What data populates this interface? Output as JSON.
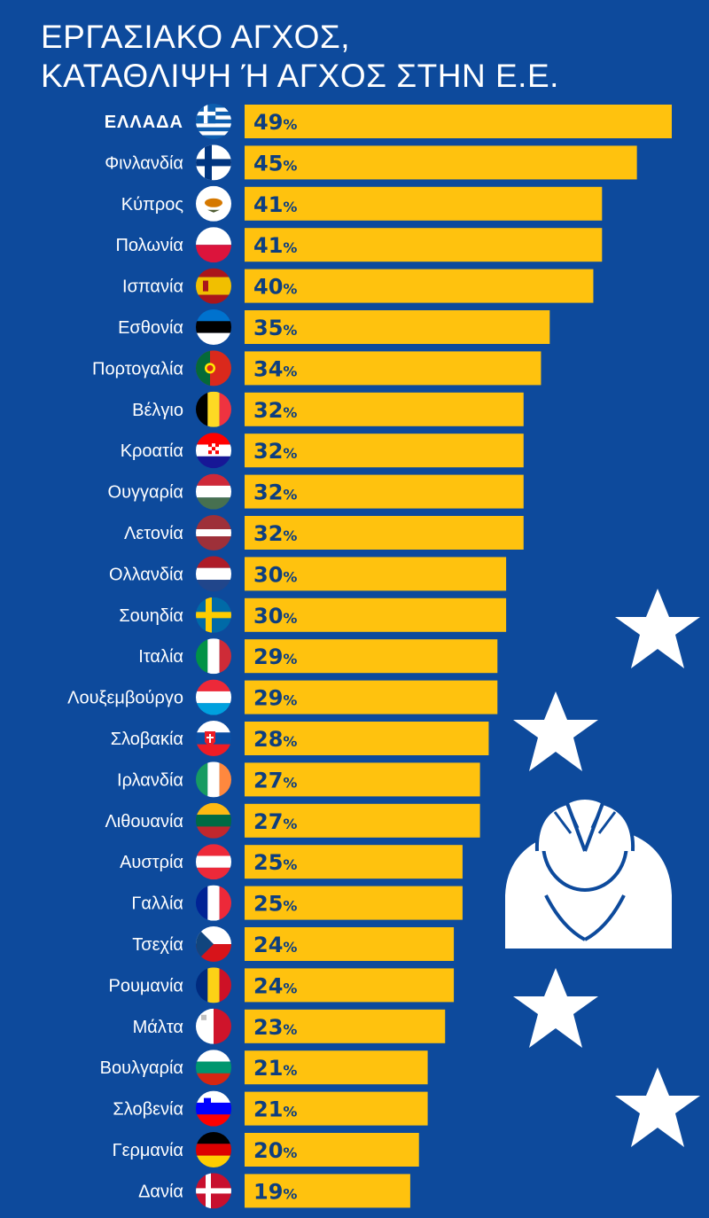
{
  "title": {
    "line1": "ΕΡΓΑΣΙΑΚΟ ΑΓΧΟΣ,",
    "line2": "ΚΑΤΑΘΛΙΨΗ Ή ΑΓΧΟΣ ΣΤΗΝ Ε.Ε."
  },
  "colors": {
    "background": "#0d4a9c",
    "bar": "#ffc20e",
    "value_text": "#0d3e7f",
    "label_text": "#ffffff"
  },
  "chart_data": {
    "type": "bar",
    "orientation": "horizontal",
    "title": "ΕΡΓΑΣΙΑΚΟ ΑΓΧΟΣ, ΚΑΤΑΘΛΙΨΗ Ή ΑΓΧΟΣ ΣΤΗΝ Ε.Ε.",
    "unit": "%",
    "categories": [
      "ΕΛΛΑΔΑ",
      "Φινλανδία",
      "Κύπρος",
      "Πολωνία",
      "Ισπανία",
      "Εσθονία",
      "Πορτογαλία",
      "Βέλγιο",
      "Κροατία",
      "Ουγγαρία",
      "Λετονία",
      "Ολλανδία",
      "Σουηδία",
      "Ιταλία",
      "Λουξεμβούργο",
      "Σλοβακία",
      "Ιρλανδία",
      "Λιθουανία",
      "Αυστρία",
      "Γαλλία",
      "Τσεχία",
      "Ρουμανία",
      "Μάλτα",
      "Βουλγαρία",
      "Σλοβενία",
      "Γερμανία",
      "Δανία"
    ],
    "values": [
      49,
      45,
      41,
      41,
      40,
      35,
      34,
      32,
      32,
      32,
      32,
      30,
      30,
      29,
      29,
      28,
      27,
      27,
      25,
      25,
      24,
      24,
      23,
      21,
      21,
      20,
      19
    ],
    "flag_icons": [
      "flag-greece",
      "flag-finland",
      "flag-cyprus",
      "flag-poland",
      "flag-spain",
      "flag-estonia",
      "flag-portugal",
      "flag-belgium",
      "flag-croatia",
      "flag-hungary",
      "flag-latvia",
      "flag-netherlands",
      "flag-sweden",
      "flag-italy",
      "flag-luxembourg",
      "flag-slovakia",
      "flag-ireland",
      "flag-lithuania",
      "flag-austria",
      "flag-france",
      "flag-czechia",
      "flag-romania",
      "flag-malta",
      "flag-bulgaria",
      "flag-slovenia",
      "flag-germany",
      "flag-denmark"
    ],
    "xlim": [
      0,
      49
    ],
    "grid": false,
    "legend": "none"
  },
  "decorations": {
    "icons": [
      "star-icon",
      "star-icon",
      "star-icon",
      "star-icon",
      "stressed-person-icon"
    ]
  }
}
